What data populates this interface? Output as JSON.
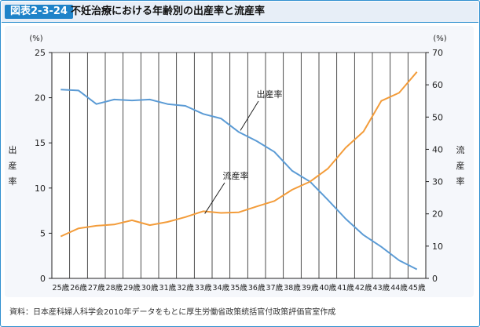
{
  "header": {
    "figure_label": "図表2-3-24",
    "title": "不妊治療における年齢別の出産率と流産率"
  },
  "chart_data": {
    "type": "line",
    "categories": [
      "25歳",
      "26歳",
      "27歳",
      "28歳",
      "29歳",
      "30歳",
      "31歳",
      "32歳",
      "33歳",
      "34歳",
      "35歳",
      "36歳",
      "37歳",
      "38歳",
      "39歳",
      "40歳",
      "41歳",
      "42歳",
      "43歳",
      "44歳",
      "45歳"
    ],
    "series": [
      {
        "name": "出産率",
        "axis": "left",
        "color": "#5b9bd5",
        "values": [
          20.9,
          20.8,
          19.3,
          19.8,
          19.7,
          19.8,
          19.3,
          19.1,
          18.2,
          17.7,
          16.2,
          15.2,
          14.0,
          11.9,
          10.7,
          8.7,
          6.6,
          4.8,
          3.5,
          2.0,
          1.0
        ]
      },
      {
        "name": "流産率",
        "axis": "right",
        "color": "#f39c3a",
        "values": [
          13.0,
          15.5,
          16.3,
          16.7,
          18.0,
          16.5,
          17.5,
          19.0,
          20.8,
          20.3,
          20.5,
          22.3,
          24.0,
          27.5,
          30.0,
          34.0,
          40.5,
          45.5,
          55.0,
          57.5,
          64.0
        ]
      }
    ],
    "left_axis": {
      "unit": "(%)",
      "label": "出産率",
      "min": 0,
      "max": 25,
      "ticks": [
        0,
        5,
        10,
        15,
        20,
        25
      ]
    },
    "right_axis": {
      "unit": "(%)",
      "label": "流産率",
      "min": 0,
      "max": 70,
      "ticks": [
        0,
        10,
        20,
        30,
        40,
        50,
        60,
        70
      ]
    },
    "annotations": [
      {
        "text": "出産率",
        "series": 0
      },
      {
        "text": "流産率",
        "series": 1
      }
    ],
    "vertical_gridlines": true
  },
  "source": "資料：日本産科婦人科学会2010年データをもとに厚生労働省政策統括官付政策評価官室作成"
}
